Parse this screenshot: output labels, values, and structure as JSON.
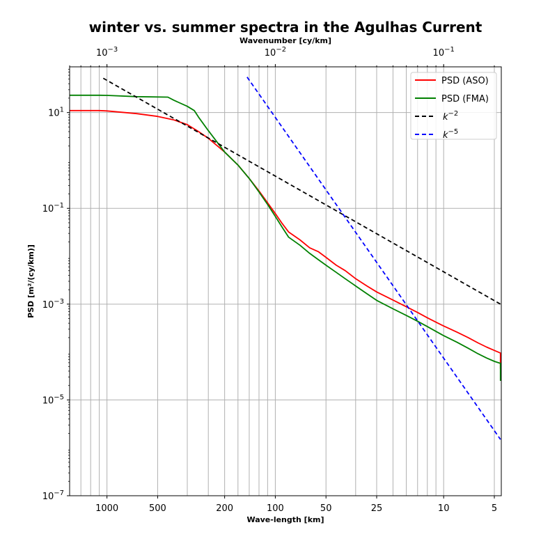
{
  "chart_data": {
    "type": "line",
    "title": "winter vs. summer spectra in the Agulhas Current",
    "xlabel": "Wave-length [km]",
    "x2label": "Wavenumber [cy/km]",
    "ylabel": "PSD [m²/(cy/km)]",
    "xscale": "log",
    "yscale": "log",
    "xlim_wavenumber": [
      0.0006,
      0.22
    ],
    "ylim": [
      1e-07,
      90
    ],
    "grid": true,
    "legend_position": "top-right",
    "x_ticks_bottom": [
      {
        "k": 0.001,
        "label": "1000"
      },
      {
        "k": 0.002,
        "label": "500"
      },
      {
        "k": 0.005,
        "label": "200"
      },
      {
        "k": 0.01,
        "label": "100"
      },
      {
        "k": 0.02,
        "label": "50"
      },
      {
        "k": 0.04,
        "label": "25"
      },
      {
        "k": 0.1,
        "label": "10"
      },
      {
        "k": 0.2,
        "label": "5"
      }
    ],
    "x_ticks_top": [
      {
        "k": 0.001,
        "base": "10",
        "exp": "−3"
      },
      {
        "k": 0.01,
        "base": "10",
        "exp": "−2"
      },
      {
        "k": 0.1,
        "base": "10",
        "exp": "−1"
      }
    ],
    "y_ticks": [
      {
        "v": 10,
        "base": "10",
        "exp": "1"
      },
      {
        "v": 0.1,
        "base": "10",
        "exp": "−1"
      },
      {
        "v": 0.001,
        "base": "10",
        "exp": "−3"
      },
      {
        "v": 1e-05,
        "base": "10",
        "exp": "−5"
      },
      {
        "v": 1e-07,
        "base": "10",
        "exp": "−7"
      }
    ],
    "series": [
      {
        "name": "PSD (ASO)",
        "color": "#ff0000",
        "style": "solid",
        "points": [
          [
            0.0006,
            11
          ],
          [
            0.0009,
            11
          ],
          [
            0.001,
            10.8
          ],
          [
            0.0015,
            9.5
          ],
          [
            0.002,
            8.3
          ],
          [
            0.0025,
            7
          ],
          [
            0.003,
            5.6
          ],
          [
            0.0035,
            4
          ],
          [
            0.004,
            2.9
          ],
          [
            0.005,
            1.5
          ],
          [
            0.006,
            0.8
          ],
          [
            0.007,
            0.42
          ],
          [
            0.008,
            0.23
          ],
          [
            0.009,
            0.13
          ],
          [
            0.01,
            0.078
          ],
          [
            0.011,
            0.048
          ],
          [
            0.012,
            0.032
          ],
          [
            0.014,
            0.022
          ],
          [
            0.016,
            0.015
          ],
          [
            0.018,
            0.0125
          ],
          [
            0.02,
            0.0095
          ],
          [
            0.023,
            0.0065
          ],
          [
            0.026,
            0.005
          ],
          [
            0.03,
            0.0034
          ],
          [
            0.035,
            0.0024
          ],
          [
            0.04,
            0.0018
          ],
          [
            0.05,
            0.00122
          ],
          [
            0.06,
            0.00088
          ],
          [
            0.07,
            0.00067
          ],
          [
            0.08,
            0.00052
          ],
          [
            0.09,
            0.00042
          ],
          [
            0.1,
            0.00035
          ],
          [
            0.12,
            0.00026
          ],
          [
            0.14,
            0.0002
          ],
          [
            0.16,
            0.000155
          ],
          [
            0.18,
            0.000127
          ],
          [
            0.2,
            0.000108
          ],
          [
            0.2176,
            9.5e-05
          ],
          [
            0.2176,
            4.5e-05
          ]
        ]
      },
      {
        "name": "PSD (FMA)",
        "color": "#008000",
        "style": "solid",
        "points": [
          [
            0.0006,
            23
          ],
          [
            0.0009,
            23
          ],
          [
            0.001,
            22.8
          ],
          [
            0.0015,
            21.5
          ],
          [
            0.0023,
            21
          ],
          [
            0.0025,
            18
          ],
          [
            0.003,
            13.5
          ],
          [
            0.0033,
            11
          ],
          [
            0.0035,
            8
          ],
          [
            0.004,
            4.2
          ],
          [
            0.005,
            1.5
          ],
          [
            0.006,
            0.8
          ],
          [
            0.007,
            0.42
          ],
          [
            0.008,
            0.22
          ],
          [
            0.009,
            0.12
          ],
          [
            0.01,
            0.068
          ],
          [
            0.011,
            0.04
          ],
          [
            0.012,
            0.025
          ],
          [
            0.014,
            0.017
          ],
          [
            0.016,
            0.0115
          ],
          [
            0.018,
            0.0085
          ],
          [
            0.02,
            0.0065
          ],
          [
            0.023,
            0.0046
          ],
          [
            0.026,
            0.0034
          ],
          [
            0.03,
            0.0024
          ],
          [
            0.035,
            0.00165
          ],
          [
            0.04,
            0.0012
          ],
          [
            0.05,
            0.0008
          ],
          [
            0.06,
            0.00058
          ],
          [
            0.07,
            0.00044
          ],
          [
            0.08,
            0.00034
          ],
          [
            0.09,
            0.00027
          ],
          [
            0.1,
            0.00022
          ],
          [
            0.12,
            0.00016
          ],
          [
            0.14,
            0.00012
          ],
          [
            0.16,
            9.2e-05
          ],
          [
            0.18,
            7.5e-05
          ],
          [
            0.2,
            6.4e-05
          ],
          [
            0.2176,
            5.8e-05
          ],
          [
            0.2176,
            2.5e-05
          ]
        ]
      },
      {
        "name": "k^−2",
        "legend_base": "k",
        "legend_exp": "−2",
        "color": "#000000",
        "style": "dashed",
        "points": [
          [
            0.00095,
            52
          ],
          [
            0.2176,
            0.001
          ]
        ]
      },
      {
        "name": "k^−5",
        "legend_base": "k",
        "legend_exp": "−5",
        "color": "#0000ff",
        "style": "dashed",
        "points": [
          [
            0.0068,
            55
          ],
          [
            0.2176,
            1.5e-06
          ]
        ]
      }
    ]
  }
}
